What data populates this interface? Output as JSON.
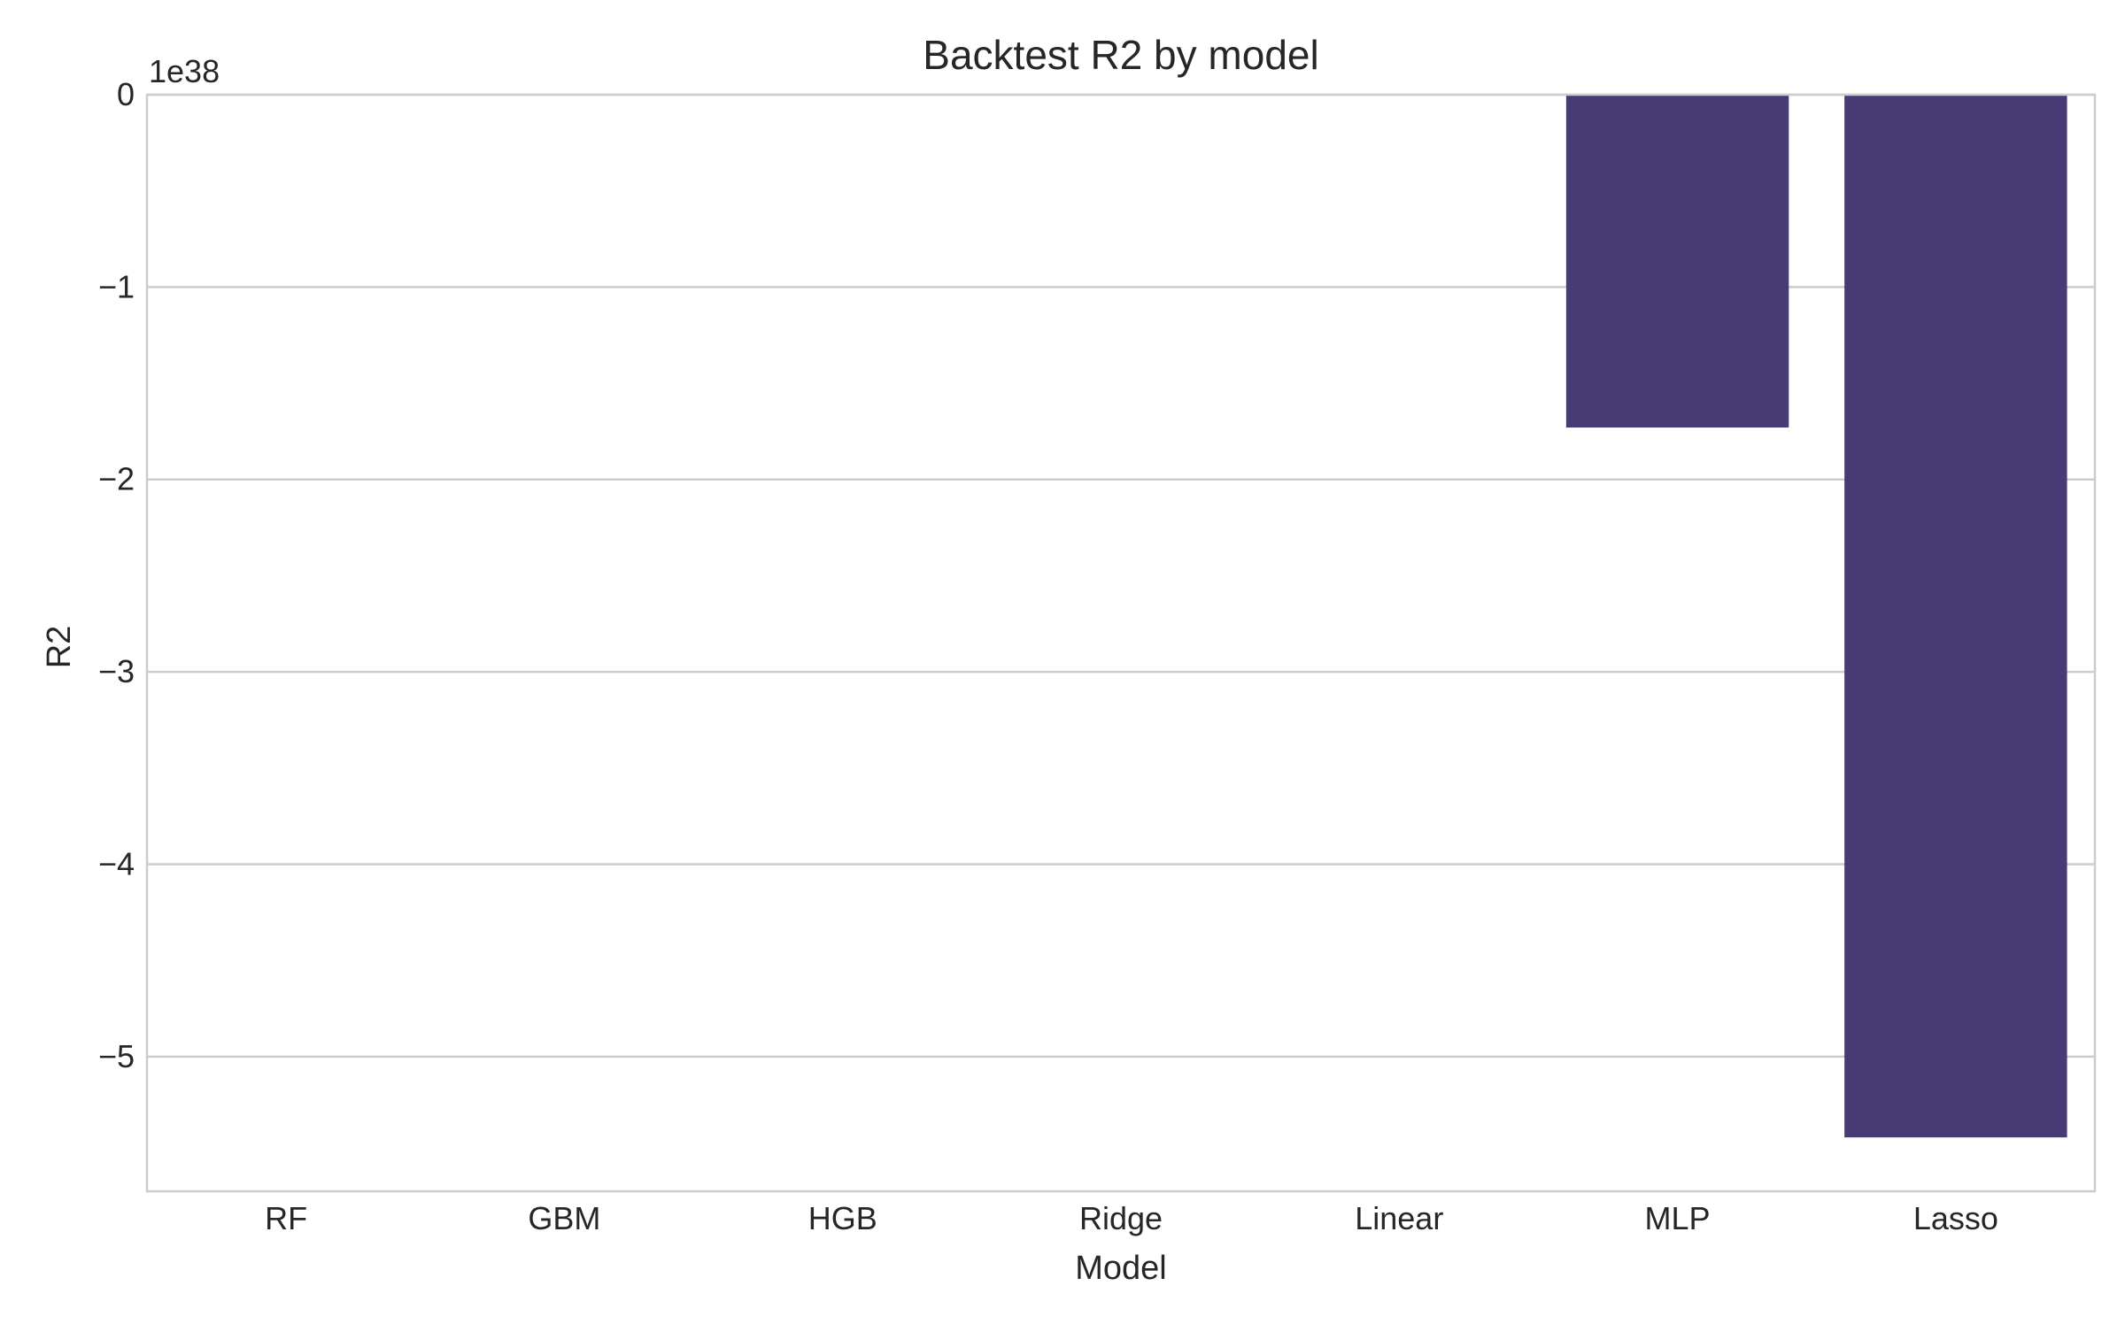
{
  "chart_data": {
    "type": "bar",
    "title": "Backtest R2 by model",
    "xlabel": "Model",
    "ylabel": "R2",
    "y_offset_text": "1e38",
    "y_scale": 1e+38,
    "categories": [
      "RF",
      "GBM",
      "HGB",
      "Ridge",
      "Linear",
      "MLP",
      "Lasso"
    ],
    "series": [
      {
        "values": [
          0,
          0,
          0,
          0,
          0,
          -1.73e+38,
          -5.42e+38
        ]
      }
    ],
    "ylim": [
      -5.7e+38,
      0
    ],
    "y_ticks": [
      0,
      -1,
      -2,
      -3,
      -4,
      -5
    ],
    "y_tick_labels": [
      "0",
      "−1",
      "−2",
      "−3",
      "−4",
      "−5"
    ],
    "grid": true,
    "bar_color": "#483a74",
    "grid_color": "#cccccc",
    "axes_color": "#cccccc"
  }
}
